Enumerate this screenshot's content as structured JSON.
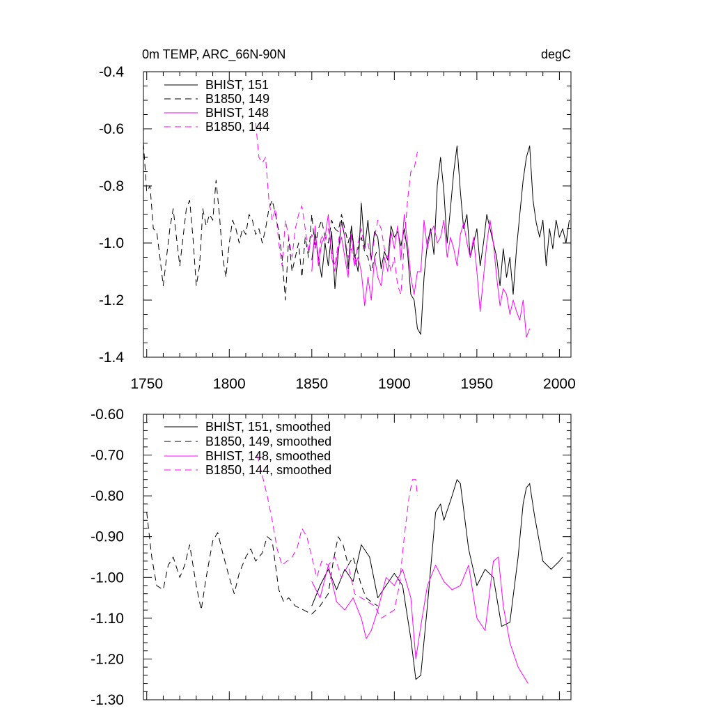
{
  "chart_data": [
    {
      "type": "line",
      "title": "0m TEMP, ARC_66N-90N",
      "units": "degC",
      "xlabel": "",
      "ylabel": "",
      "xlim": [
        1748,
        2007
      ],
      "ylim": [
        -1.4,
        -0.4
      ],
      "xticks": [
        1750,
        1800,
        1850,
        1900,
        1950,
        2000
      ],
      "yticks": [
        -1.4,
        -1.2,
        -1.0,
        -0.8,
        -0.6,
        -0.4
      ],
      "ytick_labels": [
        "-1.4",
        "-1.2",
        "-1.0",
        "-0.8",
        "-0.6",
        "-0.4"
      ],
      "legend_position": "top-left",
      "colors": {
        "black": "#000000",
        "magenta": "#ff00ff"
      },
      "series": [
        {
          "name": "BHIST, 151",
          "color": "#000000",
          "dashed": false,
          "x": [
            1850,
            1852,
            1854,
            1856,
            1858,
            1860,
            1862,
            1864,
            1866,
            1868,
            1870,
            1872,
            1874,
            1876,
            1878,
            1880,
            1882,
            1884,
            1886,
            1888,
            1890,
            1892,
            1894,
            1896,
            1898,
            1900,
            1902,
            1904,
            1906,
            1908,
            1910,
            1912,
            1914,
            1916,
            1918,
            1920,
            1922,
            1924,
            1926,
            1928,
            1930,
            1932,
            1934,
            1936,
            1938,
            1940,
            1942,
            1944,
            1946,
            1948,
            1950,
            1952,
            1954,
            1956,
            1958,
            1960,
            1962,
            1964,
            1966,
            1968,
            1970,
            1972,
            1974,
            1976,
            1978,
            1980,
            1982,
            1984,
            1986,
            1988,
            1990,
            1992,
            1994,
            1996,
            1998,
            2000,
            2002,
            2004,
            2006
          ],
          "values": [
            -1.06,
            -0.97,
            -1.05,
            -1.12,
            -1.0,
            -1.08,
            -0.96,
            -1.16,
            -1.04,
            -0.92,
            -0.98,
            -1.09,
            -0.94,
            -1.04,
            -1.1,
            -0.86,
            -1.02,
            -0.92,
            -1.06,
            -0.96,
            -0.98,
            -1.09,
            -1.03,
            -1.06,
            -0.94,
            -0.98,
            -0.96,
            -1.01,
            -0.95,
            -1.03,
            -1.18,
            -1.2,
            -1.3,
            -1.32,
            -1.12,
            -1.0,
            -0.95,
            -1.04,
            -0.8,
            -0.7,
            -0.82,
            -1.0,
            -0.88,
            -0.75,
            -0.66,
            -0.82,
            -0.95,
            -0.9,
            -1.05,
            -1.0,
            -0.95,
            -1.08,
            -1.0,
            -0.9,
            -0.95,
            -1.0,
            -1.05,
            -1.15,
            -1.02,
            -1.12,
            -1.05,
            -1.18,
            -1.02,
            -0.9,
            -0.78,
            -0.7,
            -0.66,
            -0.85,
            -0.93,
            -0.98,
            -0.92,
            -1.08,
            -0.95,
            -1.02,
            -0.92,
            -0.98,
            -0.95,
            -1.0,
            -0.92
          ]
        },
        {
          "name": "B1850, 149",
          "color": "#000000",
          "dashed": true,
          "x": [
            1748,
            1750,
            1752,
            1754,
            1756,
            1758,
            1760,
            1762,
            1764,
            1766,
            1768,
            1770,
            1772,
            1774,
            1776,
            1778,
            1780,
            1782,
            1784,
            1786,
            1788,
            1790,
            1792,
            1794,
            1796,
            1798,
            1800,
            1802,
            1804,
            1806,
            1808,
            1810,
            1812,
            1814,
            1816,
            1818,
            1820,
            1822,
            1824,
            1826,
            1828,
            1830,
            1832,
            1834,
            1836,
            1838,
            1840,
            1842,
            1844,
            1846,
            1848,
            1850,
            1852,
            1854,
            1856,
            1858,
            1860,
            1862,
            1864,
            1866,
            1868,
            1870,
            1872,
            1874,
            1876,
            1878,
            1880,
            1882,
            1884,
            1886,
            1888,
            1890
          ],
          "values": [
            -0.65,
            -0.82,
            -0.8,
            -0.95,
            -0.96,
            -1.05,
            -1.15,
            -1.05,
            -0.95,
            -0.88,
            -0.98,
            -1.08,
            -0.98,
            -0.88,
            -0.85,
            -0.98,
            -1.15,
            -1.08,
            -0.88,
            -0.94,
            -0.9,
            -0.92,
            -0.78,
            -0.9,
            -1.05,
            -1.12,
            -1.0,
            -0.92,
            -0.95,
            -1.0,
            -0.95,
            -0.97,
            -0.9,
            -0.92,
            -0.97,
            -0.95,
            -1.0,
            -0.95,
            -0.88,
            -0.85,
            -0.9,
            -0.96,
            -1.05,
            -1.2,
            -0.98,
            -1.1,
            -1.05,
            -1.0,
            -1.12,
            -0.98,
            -1.05,
            -0.9,
            -1.02,
            -0.95,
            -0.92,
            -0.98,
            -1.0,
            -0.92,
            -0.95,
            -0.96,
            -0.9,
            -0.95,
            -1.0,
            -0.95,
            -1.05,
            -1.02,
            -0.98,
            -1.03,
            -1.05,
            -1.1,
            -1.05,
            -1.02
          ]
        },
        {
          "name": "BHIST, 148",
          "color": "#ff00ff",
          "dashed": false,
          "x": [
            1850,
            1852,
            1854,
            1856,
            1858,
            1860,
            1862,
            1864,
            1866,
            1868,
            1870,
            1872,
            1874,
            1876,
            1878,
            1880,
            1882,
            1884,
            1886,
            1888,
            1890,
            1892,
            1894,
            1896,
            1898,
            1900,
            1902,
            1904,
            1906,
            1908,
            1910,
            1912,
            1914,
            1916,
            1918,
            1920,
            1922,
            1924,
            1926,
            1928,
            1930,
            1932,
            1934,
            1936,
            1938,
            1940,
            1942,
            1944,
            1946,
            1948,
            1950,
            1952,
            1954,
            1956,
            1958,
            1960,
            1962,
            1964,
            1966,
            1968,
            1970,
            1972,
            1974,
            1976,
            1978,
            1980,
            1982
          ],
          "values": [
            -1.1,
            -0.94,
            -1.08,
            -1.0,
            -0.98,
            -0.9,
            -1.05,
            -1.1,
            -1.02,
            -0.98,
            -1.05,
            -1.12,
            -0.97,
            -1.08,
            -1.05,
            -1.1,
            -1.22,
            -1.12,
            -1.2,
            -1.05,
            -1.12,
            -1.15,
            -1.05,
            -1.1,
            -0.96,
            -1.02,
            -0.94,
            -1.06,
            -0.9,
            -1.0,
            -1.12,
            -1.18,
            -1.1,
            -1.1,
            -0.92,
            -1.02,
            -0.96,
            -0.94,
            -1.0,
            -0.98,
            -0.92,
            -1.05,
            -0.98,
            -1.02,
            -1.08,
            -0.97,
            -0.93,
            -1.0,
            -1.05,
            -0.98,
            -1.1,
            -1.24,
            -1.12,
            -1.0,
            -0.92,
            -1.0,
            -1.12,
            -1.22,
            -1.16,
            -1.18,
            -1.25,
            -1.2,
            -1.24,
            -1.27,
            -1.2,
            -1.33,
            -1.3
          ]
        },
        {
          "name": "B1850, 144",
          "color": "#ff00ff",
          "dashed": true,
          "x": [
            1816,
            1818,
            1820,
            1822,
            1824,
            1826,
            1828,
            1830,
            1832,
            1834,
            1836,
            1838,
            1840,
            1842,
            1844,
            1846,
            1848,
            1850,
            1852,
            1854,
            1856,
            1858,
            1860,
            1862,
            1864,
            1866,
            1868,
            1870,
            1872,
            1874,
            1876,
            1878,
            1880,
            1882,
            1884,
            1886,
            1888,
            1890,
            1892,
            1894,
            1896,
            1898,
            1900,
            1902,
            1904,
            1906,
            1908,
            1910,
            1912,
            1914
          ],
          "values": [
            -0.58,
            -0.7,
            -0.72,
            -0.7,
            -0.85,
            -0.92,
            -0.88,
            -1.0,
            -1.08,
            -0.92,
            -0.98,
            -1.05,
            -0.95,
            -0.9,
            -0.87,
            -0.95,
            -1.03,
            -0.97,
            -1.0,
            -1.05,
            -0.97,
            -1.0,
            -0.95,
            -1.03,
            -1.08,
            -1.0,
            -0.93,
            -0.98,
            -1.05,
            -1.02,
            -1.08,
            -1.0,
            -0.95,
            -1.02,
            -1.0,
            -1.06,
            -0.98,
            -0.92,
            -0.95,
            -1.02,
            -1.05,
            -1.1,
            -1.05,
            -1.15,
            -1.18,
            -1.0,
            -0.85,
            -0.75,
            -0.74,
            -0.68
          ]
        }
      ]
    },
    {
      "type": "line",
      "title": "",
      "xlabel": "",
      "ylabel": "",
      "xlim": [
        1748,
        2007
      ],
      "ylim": [
        -1.3,
        -0.6
      ],
      "xticks": [
        1750,
        1800,
        1850,
        1900,
        1950,
        2000
      ],
      "yticks": [
        -1.3,
        -1.2,
        -1.1,
        -1.0,
        -0.9,
        -0.8,
        -0.7,
        -0.6
      ],
      "ytick_labels": [
        "-1.30",
        "-1.20",
        "-1.10",
        "-1.00",
        "-0.90",
        "-0.80",
        "-0.70",
        "-0.60"
      ],
      "legend_position": "top-left",
      "series": [
        {
          "name": "BHIST, 151, smoothed",
          "color": "#000000",
          "dashed": false,
          "x": [
            1850,
            1855,
            1860,
            1865,
            1870,
            1875,
            1880,
            1885,
            1890,
            1895,
            1900,
            1905,
            1910,
            1913,
            1916,
            1920,
            1925,
            1928,
            1930,
            1935,
            1938,
            1940,
            1945,
            1950,
            1955,
            1960,
            1965,
            1970,
            1975,
            1978,
            1980,
            1982,
            1985,
            1990,
            1995,
            2000,
            2002
          ],
          "values": [
            -1.07,
            -1.02,
            -0.98,
            -1.03,
            -0.98,
            -1.01,
            -0.92,
            -0.95,
            -1.05,
            -1.02,
            -0.99,
            -1.02,
            -1.15,
            -1.25,
            -1.24,
            -1.07,
            -0.84,
            -0.82,
            -0.86,
            -0.8,
            -0.76,
            -0.77,
            -0.93,
            -1.02,
            -0.98,
            -1.0,
            -1.12,
            -1.11,
            -0.95,
            -0.82,
            -0.78,
            -0.77,
            -0.85,
            -0.96,
            -0.98,
            -0.96,
            -0.95
          ]
        },
        {
          "name": "B1850, 149, smoothed",
          "color": "#000000",
          "dashed": true,
          "x": [
            1750,
            1753,
            1756,
            1760,
            1763,
            1766,
            1770,
            1773,
            1776,
            1780,
            1783,
            1786,
            1790,
            1793,
            1796,
            1800,
            1803,
            1806,
            1810,
            1813,
            1816,
            1820,
            1823,
            1826,
            1830,
            1833,
            1836,
            1840,
            1845,
            1850,
            1855,
            1860,
            1863,
            1866,
            1869,
            1872,
            1875,
            1878,
            1880,
            1883,
            1886,
            1890
          ],
          "values": [
            -0.84,
            -0.95,
            -1.02,
            -1.03,
            -0.97,
            -0.95,
            -1.0,
            -0.97,
            -0.92,
            -1.02,
            -1.08,
            -1.0,
            -0.91,
            -0.89,
            -0.94,
            -1.0,
            -1.04,
            -0.99,
            -0.95,
            -0.93,
            -0.96,
            -0.94,
            -0.9,
            -0.91,
            -1.03,
            -1.06,
            -1.05,
            -1.07,
            -1.08,
            -1.09,
            -1.07,
            -1.04,
            -0.96,
            -0.9,
            -0.92,
            -0.97,
            -0.95,
            -0.99,
            -1.02,
            -1.05,
            -1.06,
            -1.07
          ]
        },
        {
          "name": "BHIST, 148, smoothed",
          "color": "#ff00ff",
          "dashed": false,
          "x": [
            1850,
            1855,
            1860,
            1865,
            1870,
            1875,
            1880,
            1883,
            1886,
            1890,
            1895,
            1900,
            1905,
            1910,
            1913,
            1916,
            1920,
            1925,
            1930,
            1935,
            1940,
            1945,
            1950,
            1955,
            1960,
            1963,
            1966,
            1970,
            1975,
            1978,
            1981
          ],
          "values": [
            -1.01,
            -1.05,
            -0.97,
            -1.06,
            -1.08,
            -1.05,
            -1.1,
            -1.15,
            -1.13,
            -1.08,
            -1.0,
            -1.02,
            -0.98,
            -1.05,
            -1.2,
            -1.12,
            -1.02,
            -0.97,
            -1.01,
            -1.03,
            -1.02,
            -0.97,
            -1.1,
            -1.13,
            -0.96,
            -0.95,
            -1.07,
            -1.16,
            -1.22,
            -1.24,
            -1.26
          ]
        },
        {
          "name": "B1850, 144, smoothed",
          "color": "#ff00ff",
          "dashed": true,
          "x": [
            1817,
            1820,
            1823,
            1826,
            1829,
            1832,
            1835,
            1838,
            1841,
            1844,
            1847,
            1850,
            1853,
            1856,
            1860,
            1864,
            1868,
            1872,
            1876,
            1880,
            1884,
            1888,
            1892,
            1896,
            1900,
            1903,
            1906,
            1909,
            1911,
            1913,
            1914
          ],
          "values": [
            -0.7,
            -0.75,
            -0.8,
            -0.86,
            -0.93,
            -0.97,
            -0.96,
            -0.95,
            -0.93,
            -0.88,
            -0.9,
            -0.95,
            -1.0,
            -0.96,
            -0.97,
            -0.95,
            -1.0,
            -0.97,
            -1.04,
            -1.05,
            -1.06,
            -1.07,
            -1.1,
            -1.09,
            -1.08,
            -1.02,
            -0.9,
            -0.8,
            -0.76,
            -0.76,
            -0.8
          ]
        }
      ]
    }
  ]
}
